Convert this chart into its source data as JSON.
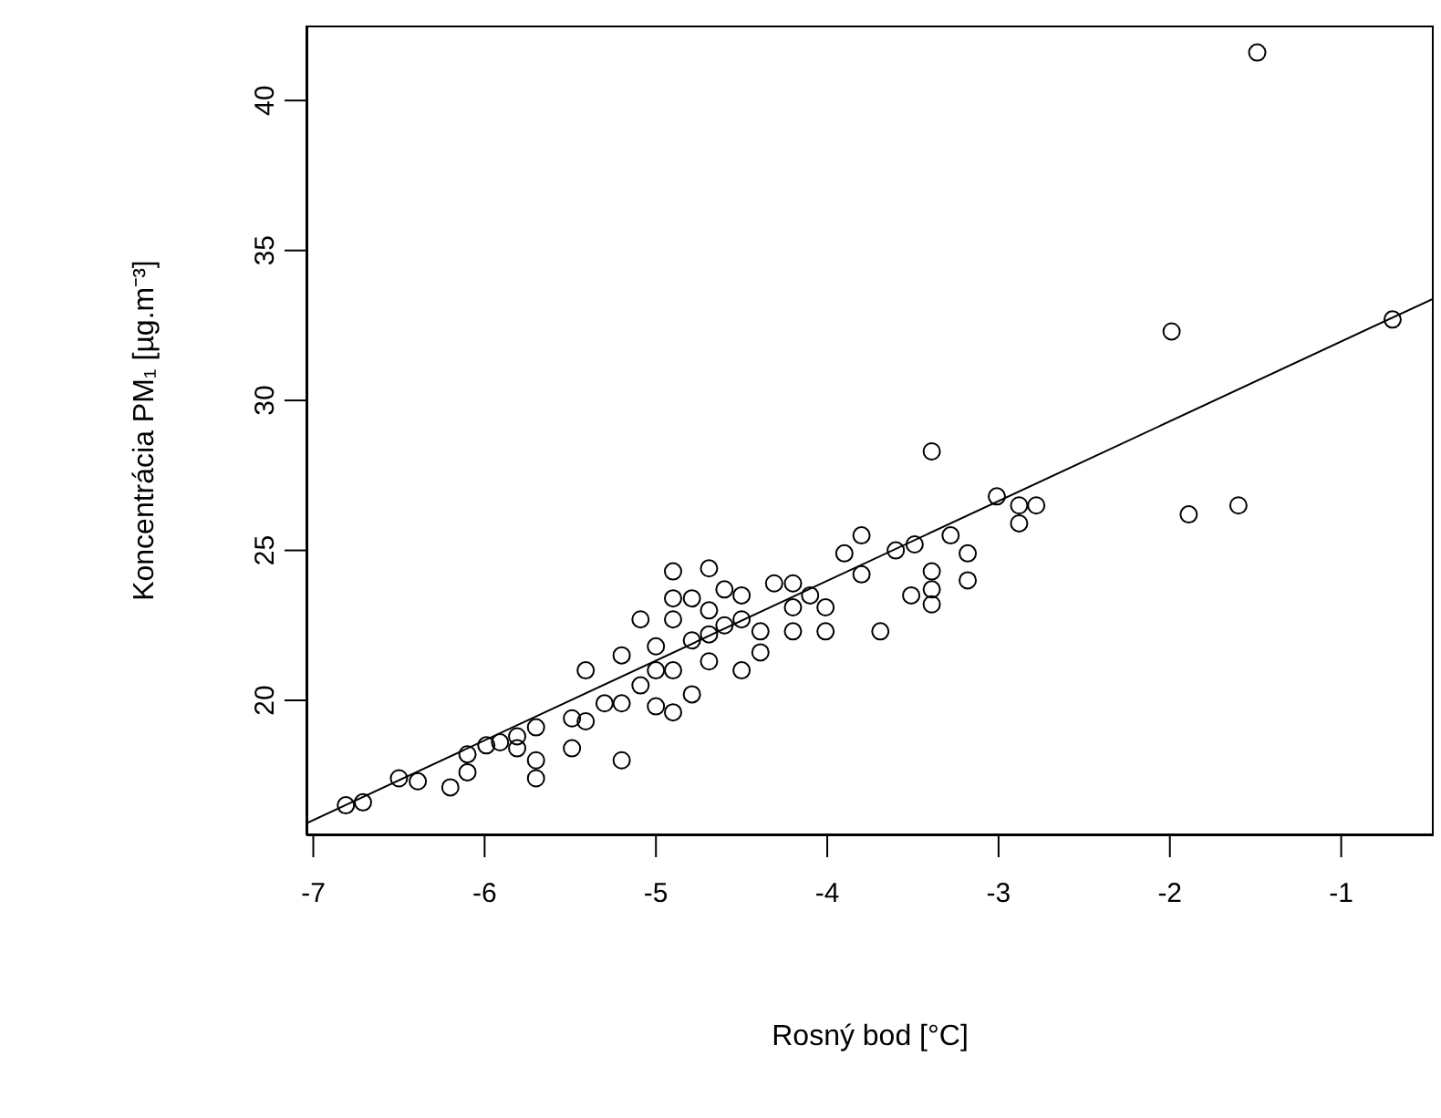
{
  "chart_data": {
    "type": "scatter",
    "xlabel": "Rosný bod [°C]",
    "ylabel": "Koncentrácia PM₁ [µg.m⁻³]",
    "xlim": [
      -7.04,
      -0.46
    ],
    "ylim": [
      15.5,
      42.5
    ],
    "xticks": [
      -7,
      -6,
      -5,
      -4,
      -3,
      -2,
      -1
    ],
    "yticks": [
      20,
      25,
      30,
      35,
      40
    ],
    "marker": "circle",
    "series": [
      {
        "color": "#000000",
        "x": [
          -6.81,
          -6.71,
          -6.5,
          -6.39,
          -6.2,
          -6.1,
          -6.1,
          -5.99,
          -5.91,
          -5.81,
          -5.81,
          -5.7,
          -5.7,
          -5.7,
          -5.49,
          -5.49,
          -5.41,
          -5.41,
          -5.3,
          -5.2,
          -5.2,
          -5.2,
          -5.09,
          -5.09,
          -5.0,
          -5.0,
          -5.0,
          -4.9,
          -4.9,
          -4.9,
          -4.9,
          -4.9,
          -4.79,
          -4.79,
          -4.79,
          -4.69,
          -4.69,
          -4.69,
          -4.69,
          -4.6,
          -4.6,
          -4.5,
          -4.5,
          -4.5,
          -4.39,
          -4.39,
          -4.31,
          -4.2,
          -4.2,
          -4.2,
          -4.1,
          -4.01,
          -4.01,
          -3.9,
          -3.8,
          -3.8,
          -3.69,
          -3.6,
          -3.49,
          -3.51,
          -3.39,
          -3.39,
          -3.39,
          -3.39,
          -3.28,
          -3.18,
          -3.18,
          -3.01,
          -2.88,
          -2.78,
          -2.88,
          -1.99,
          -1.49,
          -0.7,
          -1.89,
          -1.6
        ],
        "values": [
          16.5,
          16.6,
          17.4,
          17.3,
          17.1,
          18.2,
          17.6,
          18.5,
          18.6,
          18.8,
          18.4,
          19.1,
          18.0,
          17.4,
          19.4,
          18.4,
          19.3,
          21.0,
          19.9,
          18.0,
          19.9,
          21.5,
          22.7,
          20.5,
          21.8,
          21.0,
          19.8,
          21.0,
          19.6,
          24.3,
          23.4,
          22.7,
          20.2,
          22.0,
          23.4,
          24.4,
          23.0,
          22.2,
          21.3,
          23.7,
          22.5,
          23.5,
          22.7,
          21.0,
          22.3,
          21.6,
          23.9,
          23.9,
          23.1,
          22.3,
          23.5,
          23.1,
          22.3,
          24.9,
          25.5,
          24.2,
          22.3,
          25.0,
          25.2,
          23.5,
          28.3,
          24.3,
          23.7,
          23.2,
          25.5,
          24.9,
          24.0,
          26.8,
          26.5,
          26.5,
          25.9,
          32.3,
          41.6,
          32.7,
          26.2,
          26.5
        ]
      },
      {
        "type": "line",
        "marker": "none",
        "color": "#000000",
        "x": [
          -7.04,
          -0.46
        ],
        "values": [
          15.9,
          33.4
        ]
      }
    ]
  }
}
